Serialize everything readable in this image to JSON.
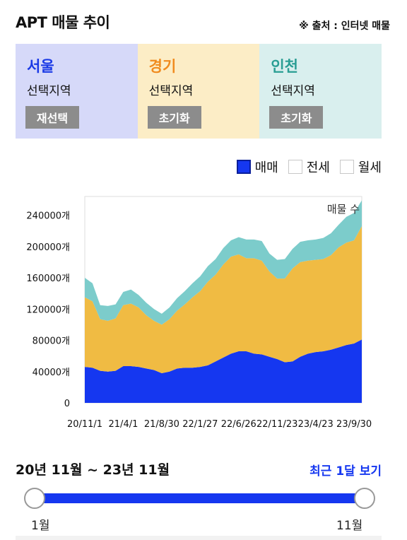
{
  "header": {
    "title": "APT 매물 추이",
    "source": "※ 출처 : 인터넷 매물"
  },
  "regions": [
    {
      "name": "서울",
      "sub": "선택지역",
      "button": "재선택",
      "color": "#1b3ae6",
      "bg": "#d6d9f9"
    },
    {
      "name": "경기",
      "sub": "선택지역",
      "button": "초기화",
      "color": "#f08b1e",
      "bg": "#fcedc6"
    },
    {
      "name": "인천",
      "sub": "선택지역",
      "button": "초기화",
      "color": "#2a9e94",
      "bg": "#d9efee"
    }
  ],
  "filters": [
    {
      "label": "매매",
      "checked": true
    },
    {
      "label": "전세",
      "checked": false
    },
    {
      "label": "월세",
      "checked": false
    }
  ],
  "chart_data": {
    "type": "area",
    "stacked": true,
    "annotation": "매물 수",
    "y_ticks": [
      "0",
      "40000개",
      "80000개",
      "120000개",
      "160000개",
      "200000개",
      "240000개"
    ],
    "x_ticks": [
      "20/11/1",
      "21/4/1",
      "21/8/30",
      "22/1/27",
      "22/6/26",
      "22/11/23",
      "23/4/23",
      "23/9/30"
    ],
    "ylim": [
      0,
      264000
    ],
    "x": [
      "20/11/1",
      "20/12/1",
      "21/1/1",
      "21/2/1",
      "21/3/1",
      "21/4/1",
      "21/5/1",
      "21/6/1",
      "21/7/1",
      "21/8/1",
      "21/8/30",
      "21/10/1",
      "21/11/1",
      "21/12/1",
      "22/1/1",
      "22/1/27",
      "22/3/1",
      "22/4/1",
      "22/5/1",
      "22/6/1",
      "22/6/26",
      "22/8/1",
      "22/9/1",
      "22/10/1",
      "22/11/1",
      "22/11/23",
      "23/1/1",
      "23/2/1",
      "23/3/1",
      "23/4/1",
      "23/4/23",
      "23/6/1",
      "23/7/1",
      "23/8/1",
      "23/9/1",
      "23/9/30",
      "23/11/1"
    ],
    "series": [
      {
        "name": "서울",
        "color": "#1537f0",
        "values": [
          46000,
          45000,
          41000,
          40000,
          41000,
          47000,
          47000,
          46000,
          44000,
          42000,
          38000,
          40000,
          44000,
          45000,
          45000,
          46000,
          48000,
          53000,
          58000,
          63000,
          66000,
          66000,
          63000,
          62000,
          59000,
          56000,
          52000,
          53000,
          59000,
          63000,
          65000,
          66000,
          68000,
          71000,
          74000,
          76000,
          81000
        ]
      },
      {
        "name": "경기",
        "color": "#f0bb43",
        "values": [
          89000,
          85000,
          66000,
          65000,
          67000,
          78000,
          80000,
          76000,
          68000,
          63000,
          62000,
          67000,
          74000,
          81000,
          90000,
          97000,
          107000,
          111000,
          119000,
          124000,
          124000,
          119000,
          122000,
          120000,
          109000,
          103000,
          107000,
          119000,
          121000,
          119000,
          118000,
          118000,
          121000,
          128000,
          131000,
          132000,
          145000
        ]
      },
      {
        "name": "인천",
        "color": "#7ccccb",
        "values": [
          25000,
          23000,
          18000,
          19000,
          18000,
          17000,
          18000,
          16000,
          16000,
          15000,
          14000,
          15000,
          16000,
          17000,
          18000,
          19000,
          20000,
          20000,
          21000,
          21000,
          22000,
          24000,
          24000,
          25000,
          23000,
          24000,
          25000,
          25000,
          26000,
          26000,
          26000,
          27000,
          28000,
          29000,
          33000,
          35000,
          33000
        ]
      }
    ]
  },
  "period": {
    "label": "20년 11월 ~ 23년 11월",
    "recent": "최근 1달 보기"
  },
  "slider": {
    "start_label": "1월",
    "end_label": "11월"
  }
}
